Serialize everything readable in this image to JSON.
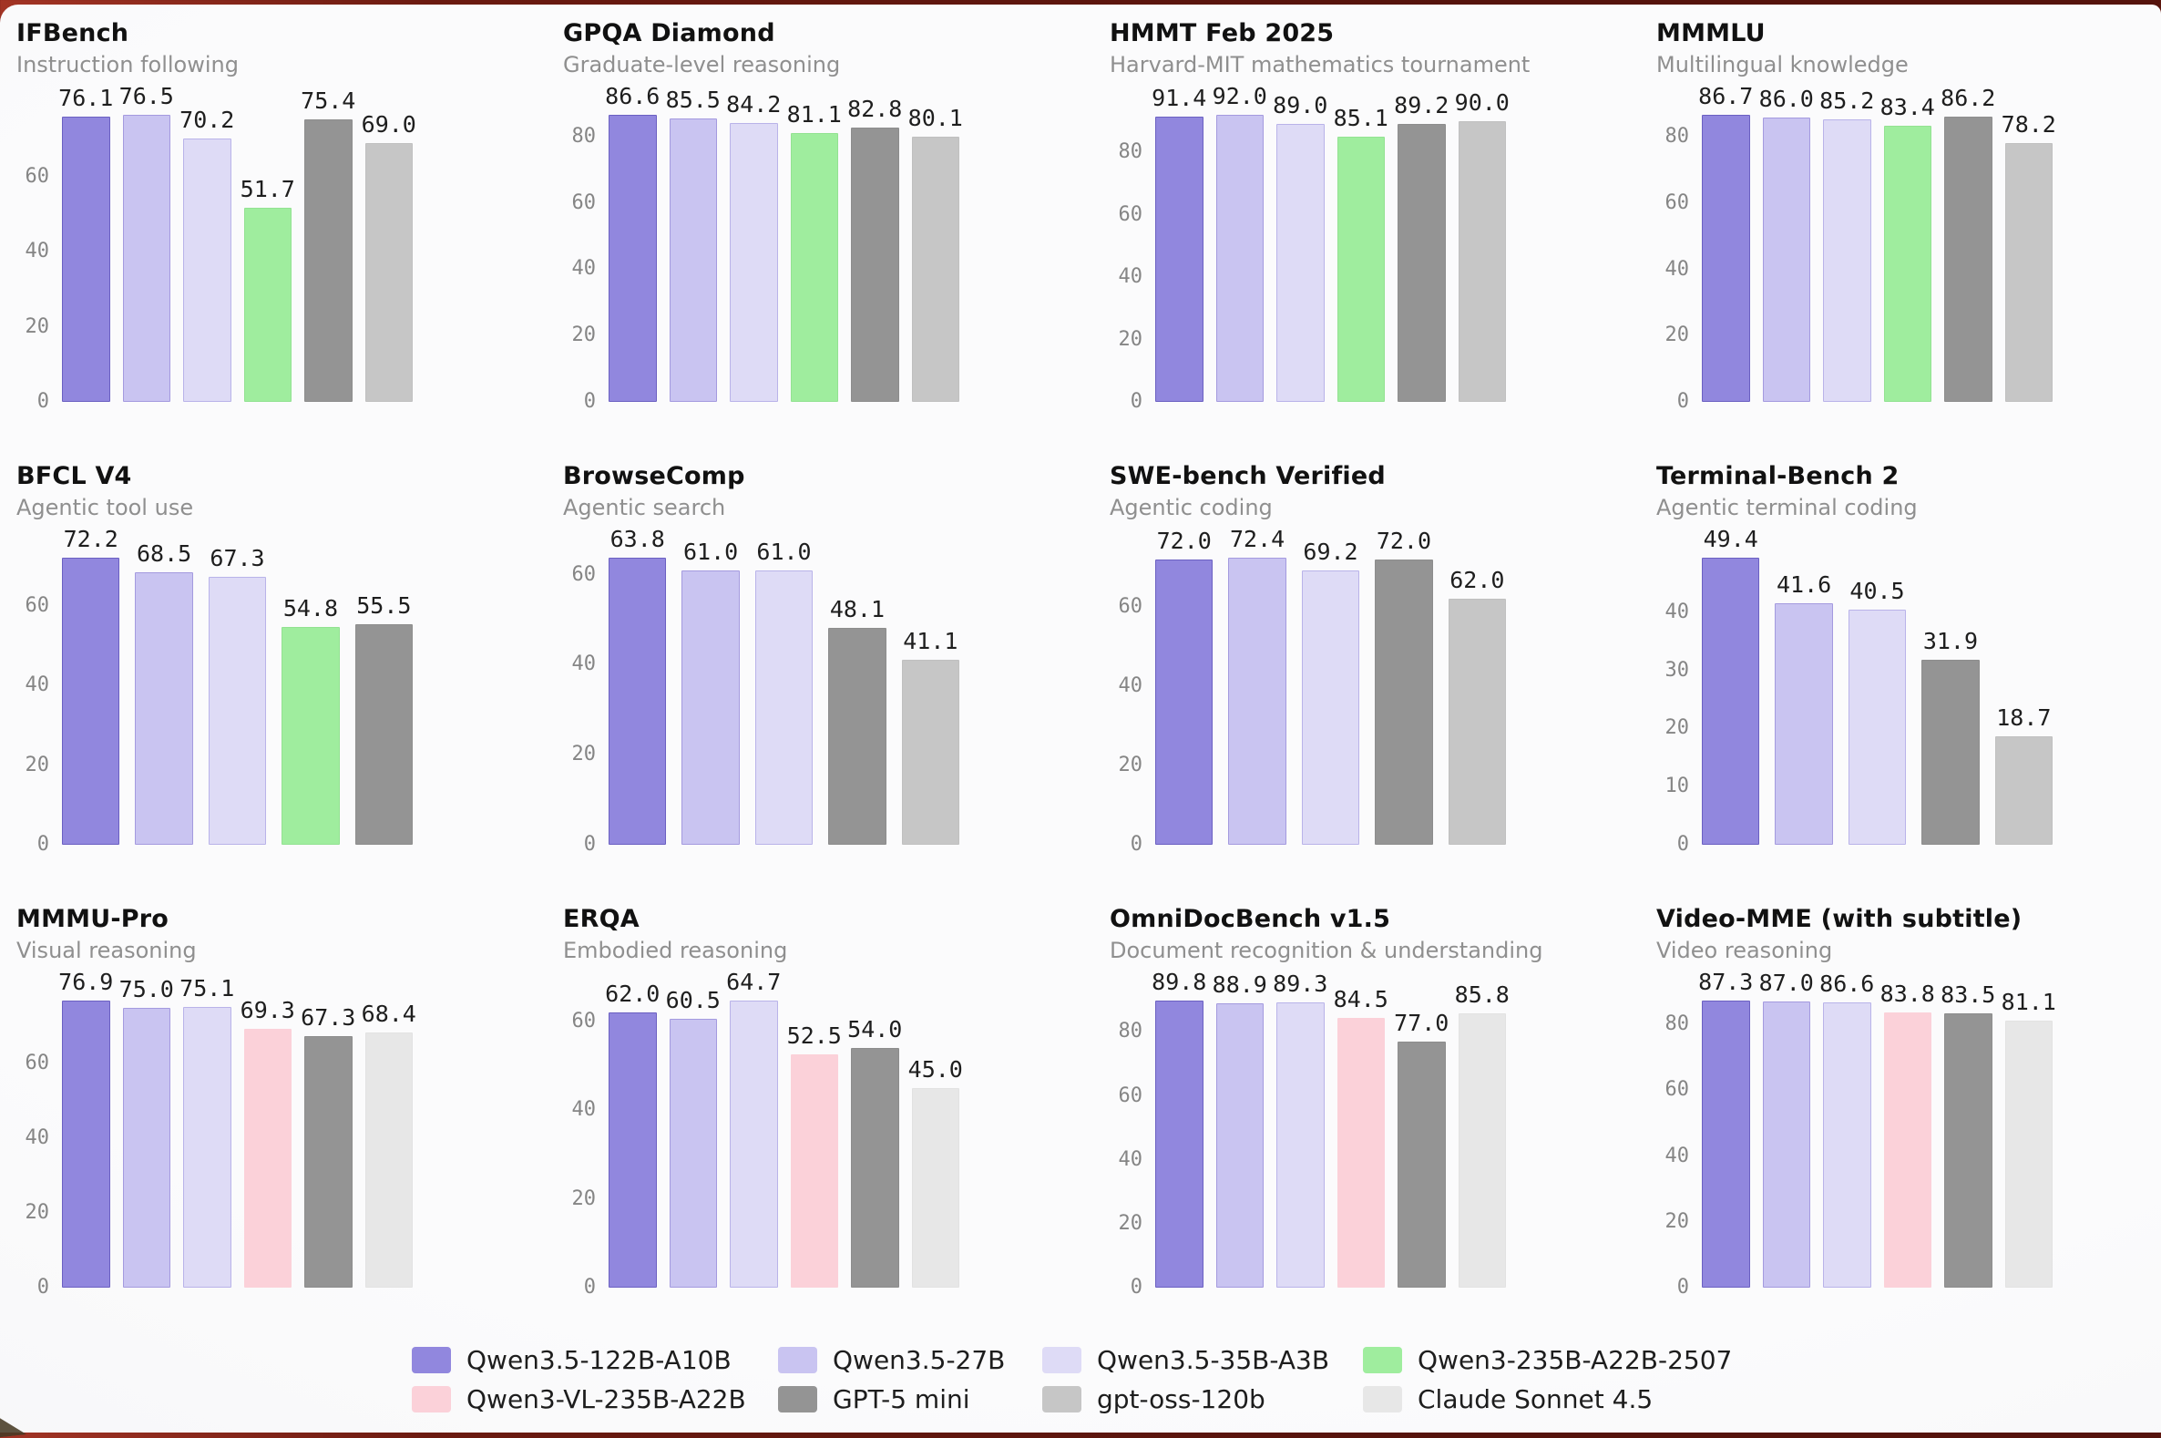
{
  "layout": {
    "legend_position": "bottom",
    "grid_lines": false,
    "value_labels": true
  },
  "colors": {
    "models": {
      "Qwen3.5-122B-A10B": {
        "fill": "#9187de",
        "border": "#6b60c2"
      },
      "Qwen3.5-27B": {
        "fill": "#c9c4f1",
        "border": "#a49adf"
      },
      "Qwen3.5-35B-A3B": {
        "fill": "#dedbf6",
        "border": "#b9b3e9"
      },
      "Qwen3-235B-A22B-2507": {
        "fill": "#9fed9e",
        "border": "#93e292"
      },
      "Qwen3-VL-235B-A22B": {
        "fill": "#fbd1d9",
        "border": "#fbd1d9"
      },
      "GPT-5 mini": {
        "fill": "#949494",
        "border": "#8d8d8d"
      },
      "gpt-oss-120b": {
        "fill": "#c6c6c6",
        "border": "#c0c0c0"
      },
      "Claude Sonnet 4.5": {
        "fill": "#e7e7e7",
        "border": "#e2e2e2"
      }
    },
    "title_color": "#111111",
    "subtitle_color": "#8f8f8f",
    "tick_color": "#858585",
    "value_label_color": "#1e1e1e"
  },
  "legend": {
    "items": [
      {
        "label": "Qwen3.5-122B-A10B",
        "color": "#9187de"
      },
      {
        "label": "Qwen3.5-27B",
        "color": "#c9c4f1"
      },
      {
        "label": "Qwen3.5-35B-A3B",
        "color": "#dedbf6"
      },
      {
        "label": "Qwen3-235B-A22B-2507",
        "color": "#9fed9e"
      },
      {
        "label": "Qwen3-VL-235B-A22B",
        "color": "#fbd1d9"
      },
      {
        "label": "GPT-5 mini",
        "color": "#949494"
      },
      {
        "label": "gpt-oss-120b",
        "color": "#c6c6c6"
      },
      {
        "label": "Claude Sonnet 4.5",
        "color": "#e7e7e7"
      }
    ]
  },
  "chart_data": [
    {
      "type": "bar",
      "title": "IFBench",
      "subtitle": "Instruction following",
      "categories": [
        "Qwen3.5-122B-A10B",
        "Qwen3.5-27B",
        "Qwen3.5-35B-A3B",
        "Qwen3-235B-A22B-2507",
        "GPT-5 mini",
        "gpt-oss-120b"
      ],
      "values": [
        76.1,
        76.5,
        70.2,
        51.7,
        75.4,
        69.0
      ],
      "labels": [
        "76.1",
        "76.5",
        "70.2",
        "51.7",
        "75.4",
        "69.0"
      ],
      "yticks": [
        0,
        20,
        40,
        60
      ]
    },
    {
      "type": "bar",
      "title": "GPQA Diamond",
      "subtitle": "Graduate-level reasoning",
      "categories": [
        "Qwen3.5-122B-A10B",
        "Qwen3.5-27B",
        "Qwen3.5-35B-A3B",
        "Qwen3-235B-A22B-2507",
        "GPT-5 mini",
        "gpt-oss-120b"
      ],
      "values": [
        86.6,
        85.5,
        84.2,
        81.1,
        82.8,
        80.1
      ],
      "labels": [
        "86.6",
        "85.5",
        "84.2",
        "81.1",
        "82.8",
        "80.1"
      ],
      "yticks": [
        0,
        20,
        40,
        60,
        80
      ]
    },
    {
      "type": "bar",
      "title": "HMMT Feb 2025",
      "subtitle": "Harvard-MIT mathematics tournament",
      "categories": [
        "Qwen3.5-122B-A10B",
        "Qwen3.5-27B",
        "Qwen3.5-35B-A3B",
        "Qwen3-235B-A22B-2507",
        "GPT-5 mini",
        "gpt-oss-120b"
      ],
      "values": [
        91.4,
        92.0,
        89.0,
        85.1,
        89.2,
        90.0
      ],
      "labels": [
        "91.4",
        "92.0",
        "89.0",
        "85.1",
        "89.2",
        "90.0"
      ],
      "yticks": [
        0,
        20,
        40,
        60,
        80
      ]
    },
    {
      "type": "bar",
      "title": "MMMLU",
      "subtitle": "Multilingual knowledge",
      "categories": [
        "Qwen3.5-122B-A10B",
        "Qwen3.5-27B",
        "Qwen3.5-35B-A3B",
        "Qwen3-235B-A22B-2507",
        "GPT-5 mini",
        "gpt-oss-120b"
      ],
      "values": [
        86.7,
        86.0,
        85.2,
        83.4,
        86.2,
        78.2
      ],
      "labels": [
        "86.7",
        "86.0",
        "85.2",
        "83.4",
        "86.2",
        "78.2"
      ],
      "yticks": [
        0,
        20,
        40,
        60,
        80
      ]
    },
    {
      "type": "bar",
      "title": "BFCL V4",
      "subtitle": "Agentic tool use",
      "categories": [
        "Qwen3.5-122B-A10B",
        "Qwen3.5-27B",
        "Qwen3.5-35B-A3B",
        "Qwen3-235B-A22B-2507",
        "GPT-5 mini"
      ],
      "values": [
        72.2,
        68.5,
        67.3,
        54.8,
        55.5
      ],
      "labels": [
        "72.2",
        "68.5",
        "67.3",
        "54.8",
        "55.5"
      ],
      "yticks": [
        0,
        20,
        40,
        60
      ]
    },
    {
      "type": "bar",
      "title": "BrowseComp",
      "subtitle": "Agentic search",
      "categories": [
        "Qwen3.5-122B-A10B",
        "Qwen3.5-27B",
        "Qwen3.5-35B-A3B",
        "GPT-5 mini",
        "gpt-oss-120b"
      ],
      "values": [
        63.8,
        61.0,
        61.0,
        48.1,
        41.1
      ],
      "labels": [
        "63.8",
        "61.0",
        "61.0",
        "48.1",
        "41.1"
      ],
      "yticks": [
        0,
        20,
        40,
        60
      ]
    },
    {
      "type": "bar",
      "title": "SWE-bench Verified",
      "subtitle": "Agentic coding",
      "categories": [
        "Qwen3.5-122B-A10B",
        "Qwen3.5-27B",
        "Qwen3.5-35B-A3B",
        "GPT-5 mini",
        "gpt-oss-120b"
      ],
      "values": [
        72.0,
        72.4,
        69.2,
        72.0,
        62.0
      ],
      "labels": [
        "72.0",
        "72.4",
        "69.2",
        "72.0",
        "62.0"
      ],
      "yticks": [
        0,
        20,
        40,
        60
      ]
    },
    {
      "type": "bar",
      "title": "Terminal-Bench 2",
      "subtitle": "Agentic terminal coding",
      "categories": [
        "Qwen3.5-122B-A10B",
        "Qwen3.5-27B",
        "Qwen3.5-35B-A3B",
        "GPT-5 mini",
        "gpt-oss-120b"
      ],
      "values": [
        49.4,
        41.6,
        40.5,
        31.9,
        18.7
      ],
      "labels": [
        "49.4",
        "41.6",
        "40.5",
        "31.9",
        "18.7"
      ],
      "yticks": [
        0,
        10,
        20,
        30,
        40
      ]
    },
    {
      "type": "bar",
      "title": "MMMU-Pro",
      "subtitle": "Visual reasoning",
      "categories": [
        "Qwen3.5-122B-A10B",
        "Qwen3.5-27B",
        "Qwen3.5-35B-A3B",
        "Qwen3-VL-235B-A22B",
        "GPT-5 mini",
        "Claude Sonnet 4.5"
      ],
      "values": [
        76.9,
        75.0,
        75.1,
        69.3,
        67.3,
        68.4
      ],
      "labels": [
        "76.9",
        "75.0",
        "75.1",
        "69.3",
        "67.3",
        "68.4"
      ],
      "yticks": [
        0,
        20,
        40,
        60
      ]
    },
    {
      "type": "bar",
      "title": "ERQA",
      "subtitle": "Embodied reasoning",
      "categories": [
        "Qwen3.5-122B-A10B",
        "Qwen3.5-27B",
        "Qwen3.5-35B-A3B",
        "Qwen3-VL-235B-A22B",
        "GPT-5 mini",
        "Claude Sonnet 4.5"
      ],
      "values": [
        62.0,
        60.5,
        64.7,
        52.5,
        54.0,
        45.0
      ],
      "labels": [
        "62.0",
        "60.5",
        "64.7",
        "52.5",
        "54.0",
        "45.0"
      ],
      "yticks": [
        0,
        20,
        40,
        60
      ]
    },
    {
      "type": "bar",
      "title": "OmniDocBench v1.5",
      "subtitle": "Document recognition & understanding",
      "categories": [
        "Qwen3.5-122B-A10B",
        "Qwen3.5-27B",
        "Qwen3.5-35B-A3B",
        "Qwen3-VL-235B-A22B",
        "GPT-5 mini",
        "Claude Sonnet 4.5"
      ],
      "values": [
        89.8,
        88.9,
        89.3,
        84.5,
        77.0,
        85.8
      ],
      "labels": [
        "89.8",
        "88.9",
        "89.3",
        "84.5",
        "77.0",
        "85.8"
      ],
      "yticks": [
        0,
        20,
        40,
        60,
        80
      ]
    },
    {
      "type": "bar",
      "title": "Video-MME (with subtitle)",
      "subtitle": "Video reasoning",
      "categories": [
        "Qwen3.5-122B-A10B",
        "Qwen3.5-27B",
        "Qwen3.5-35B-A3B",
        "Qwen3-VL-235B-A22B",
        "GPT-5 mini",
        "Claude Sonnet 4.5"
      ],
      "values": [
        87.3,
        87.0,
        86.6,
        83.8,
        83.5,
        81.1
      ],
      "labels": [
        "87.3",
        "87.0",
        "86.6",
        "83.8",
        "83.5",
        "81.1"
      ],
      "yticks": [
        0,
        20,
        40,
        60,
        80
      ]
    }
  ]
}
